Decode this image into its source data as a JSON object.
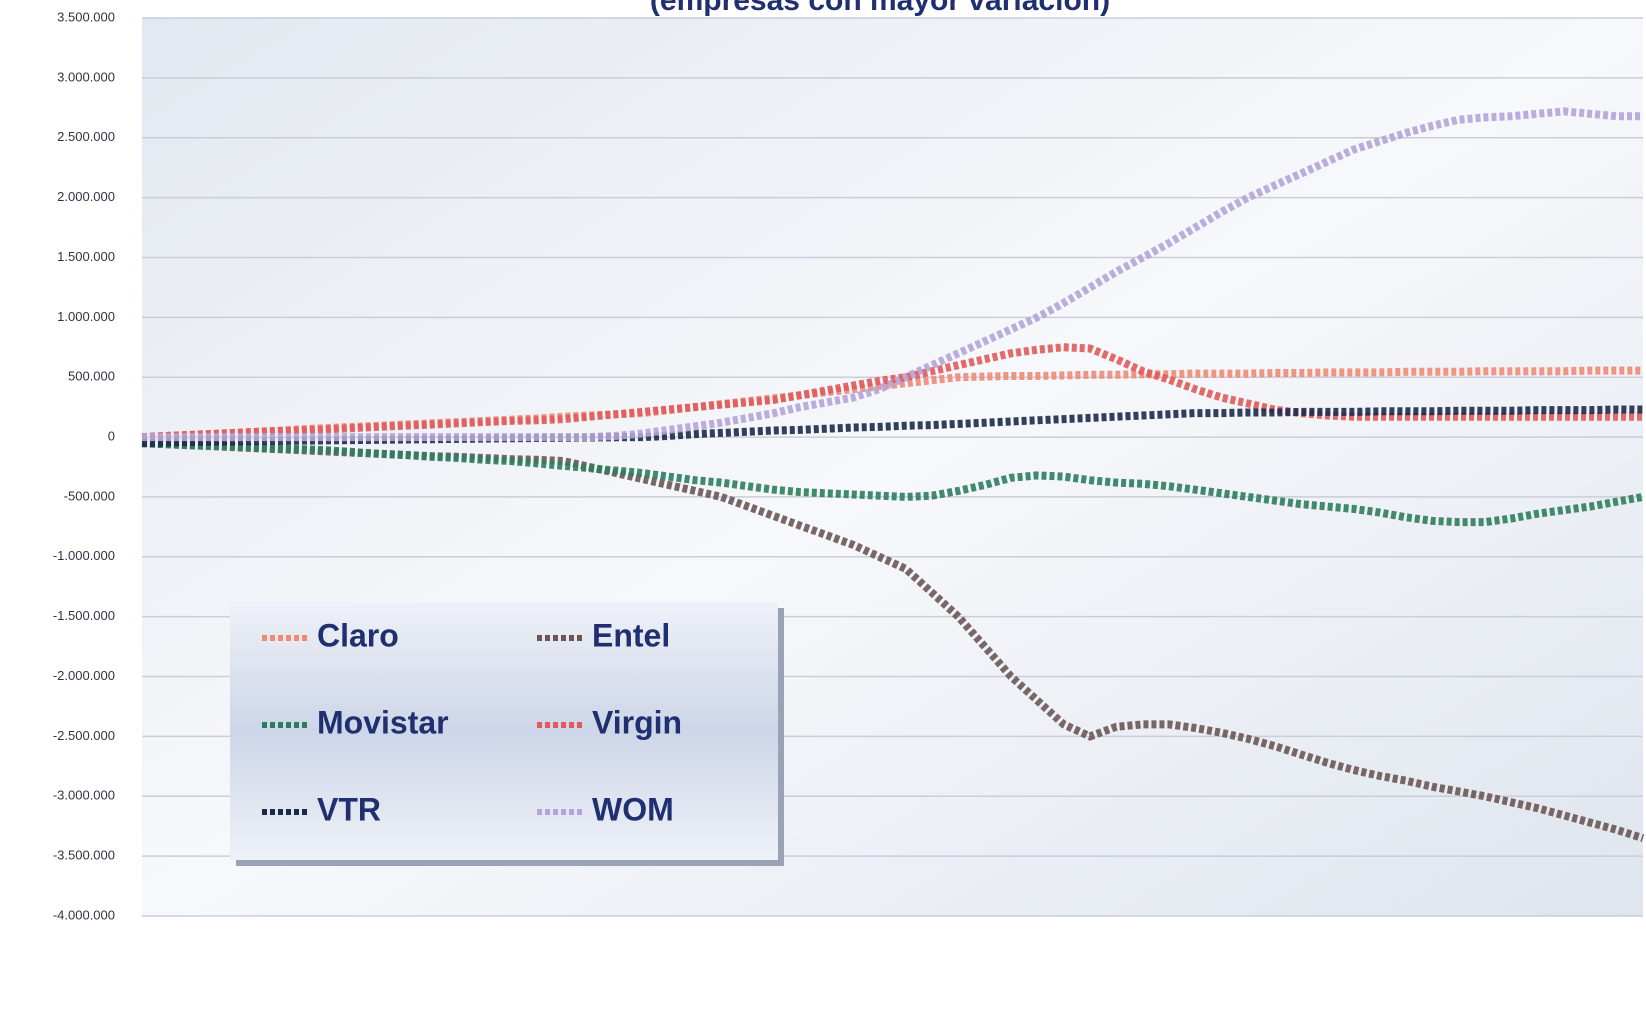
{
  "chart_data": {
    "type": "line",
    "title": "(empresas con mayor variación)",
    "categories": [
      null,
      null,
      null,
      null,
      null,
      null,
      null,
      null,
      null,
      null,
      null,
      null,
      null,
      null,
      null,
      null,
      null,
      null,
      null,
      null,
      null,
      null,
      null,
      null,
      null,
      null,
      null,
      null,
      null,
      null,
      null,
      null,
      null,
      null,
      null,
      null,
      null,
      null,
      null,
      null,
      null,
      null,
      null,
      null,
      null,
      null,
      null,
      null,
      null,
      null,
      null,
      null,
      null,
      null,
      null,
      null,
      null,
      null
    ],
    "ylim": [
      -4000000,
      3500000
    ],
    "yticks": [
      {
        "value": 3500000,
        "label": "3.500.000"
      },
      {
        "value": 3000000,
        "label": "3.000.000"
      },
      {
        "value": 2500000,
        "label": "2.500.000"
      },
      {
        "value": 2000000,
        "label": "2.000.000"
      },
      {
        "value": 1500000,
        "label": "1.500.000"
      },
      {
        "value": 1000000,
        "label": "1.000.000"
      },
      {
        "value": 500000,
        "label": "500.000"
      },
      0,
      {
        "value": -500000,
        "label": "-500.000"
      },
      {
        "value": -1000000,
        "label": "-1.000.000"
      },
      {
        "value": -1500000,
        "label": "-1.500.000"
      },
      {
        "value": -2000000,
        "label": "-2.000.000"
      },
      {
        "value": -2500000,
        "label": "-2.500.000"
      },
      {
        "value": -3000000,
        "label": "-3.000.000"
      },
      {
        "value": -3500000,
        "label": "-3.500.000"
      },
      {
        "value": -4000000,
        "label": "-4.000.000"
      }
    ],
    "grid": true,
    "legend": "lower-left",
    "series": [
      {
        "name": "Claro",
        "color": "#f08a76",
        "values": [
          0,
          10000,
          20000,
          30000,
          40000,
          50000,
          65000,
          75000,
          85000,
          95000,
          105000,
          115000,
          125000,
          135000,
          145000,
          155000,
          170000,
          180000,
          190000,
          200000,
          225000,
          250000,
          275000,
          300000,
          325000,
          350000,
          375000,
          400000,
          425000,
          450000,
          475000,
          500000,
          505000,
          510000,
          510000,
          515000,
          520000,
          520000,
          525000,
          525000,
          530000,
          530000,
          530000,
          535000,
          535000,
          540000,
          540000,
          540000,
          545000,
          545000,
          545000,
          550000,
          550000,
          550000,
          550000,
          555000,
          555000,
          555000
        ]
      },
      {
        "name": "Entel",
        "color": "#6b5656",
        "values": [
          -50000,
          -60000,
          -70000,
          -80000,
          -90000,
          -100000,
          -110000,
          -120000,
          -130000,
          -140000,
          -150000,
          -160000,
          -165000,
          -175000,
          -185000,
          -190000,
          -200000,
          -250000,
          -300000,
          -350000,
          -400000,
          -450000,
          -500000,
          -580000,
          -660000,
          -740000,
          -820000,
          -900000,
          -1000000,
          -1100000,
          -1300000,
          -1500000,
          -1750000,
          -2000000,
          -2200000,
          -2400000,
          -2500000,
          -2420000,
          -2400000,
          -2400000,
          -2430000,
          -2470000,
          -2520000,
          -2580000,
          -2650000,
          -2720000,
          -2780000,
          -2830000,
          -2870000,
          -2920000,
          -2960000,
          -3000000,
          -3050000,
          -3100000,
          -3160000,
          -3220000,
          -3280000,
          -3350000
        ]
      },
      {
        "name": "Movistar",
        "color": "#2e7d5e",
        "values": [
          -50000,
          -60000,
          -70000,
          -75000,
          -85000,
          -95000,
          -100000,
          -110000,
          -125000,
          -140000,
          -150000,
          -165000,
          -175000,
          -190000,
          -200000,
          -220000,
          -240000,
          -260000,
          -280000,
          -300000,
          -330000,
          -360000,
          -380000,
          -410000,
          -440000,
          -460000,
          -470000,
          -480000,
          -490000,
          -500000,
          -490000,
          -450000,
          -400000,
          -340000,
          -320000,
          -330000,
          -360000,
          -380000,
          -390000,
          -410000,
          -440000,
          -470000,
          -500000,
          -530000,
          -560000,
          -580000,
          -600000,
          -630000,
          -670000,
          -700000,
          -710000,
          -710000,
          -680000,
          -640000,
          -610000,
          -580000,
          -540000,
          -500000
        ]
      },
      {
        "name": "Virgin",
        "color": "#e05a5a",
        "values": [
          0,
          10000,
          20000,
          30000,
          40000,
          50000,
          55000,
          65000,
          75000,
          85000,
          95000,
          105000,
          115000,
          125000,
          135000,
          140000,
          150000,
          170000,
          190000,
          210000,
          230000,
          250000,
          270000,
          290000,
          310000,
          350000,
          390000,
          430000,
          470000,
          500000,
          550000,
          600000,
          650000,
          700000,
          730000,
          750000,
          740000,
          650000,
          550000,
          480000,
          400000,
          330000,
          280000,
          230000,
          200000,
          180000,
          170000,
          170000,
          170000,
          170000,
          170000,
          170000,
          170000,
          170000,
          170000,
          170000,
          170000,
          170000
        ]
      },
      {
        "name": "VTR",
        "color": "#1c2a4a",
        "values": [
          -50000,
          -45000,
          -40000,
          -38000,
          -35000,
          -33000,
          -30000,
          -28000,
          -25000,
          -23000,
          -20000,
          -18000,
          -15000,
          -13000,
          -10000,
          -8000,
          -6000,
          -4000,
          -2000,
          0,
          10000,
          25000,
          35000,
          45000,
          55000,
          60000,
          70000,
          80000,
          85000,
          95000,
          100000,
          110000,
          120000,
          130000,
          140000,
          150000,
          160000,
          170000,
          180000,
          190000,
          200000,
          200000,
          205000,
          205000,
          210000,
          210000,
          210000,
          215000,
          215000,
          215000,
          220000,
          220000,
          220000,
          225000,
          225000,
          225000,
          230000,
          230000
        ]
      },
      {
        "name": "WOM",
        "color": "#b4a4d8",
        "values": [
          0,
          0,
          0,
          0,
          0,
          0,
          0,
          0,
          0,
          0,
          0,
          0,
          0,
          0,
          0,
          0,
          0,
          0,
          10000,
          30000,
          60000,
          90000,
          120000,
          160000,
          200000,
          250000,
          290000,
          330000,
          400000,
          500000,
          600000,
          700000,
          800000,
          900000,
          1000000,
          1120000,
          1250000,
          1380000,
          1500000,
          1620000,
          1750000,
          1880000,
          2000000,
          2100000,
          2200000,
          2300000,
          2400000,
          2470000,
          2540000,
          2600000,
          2650000,
          2670000,
          2680000,
          2700000,
          2720000,
          2700000,
          2680000,
          2680000
        ]
      }
    ]
  }
}
